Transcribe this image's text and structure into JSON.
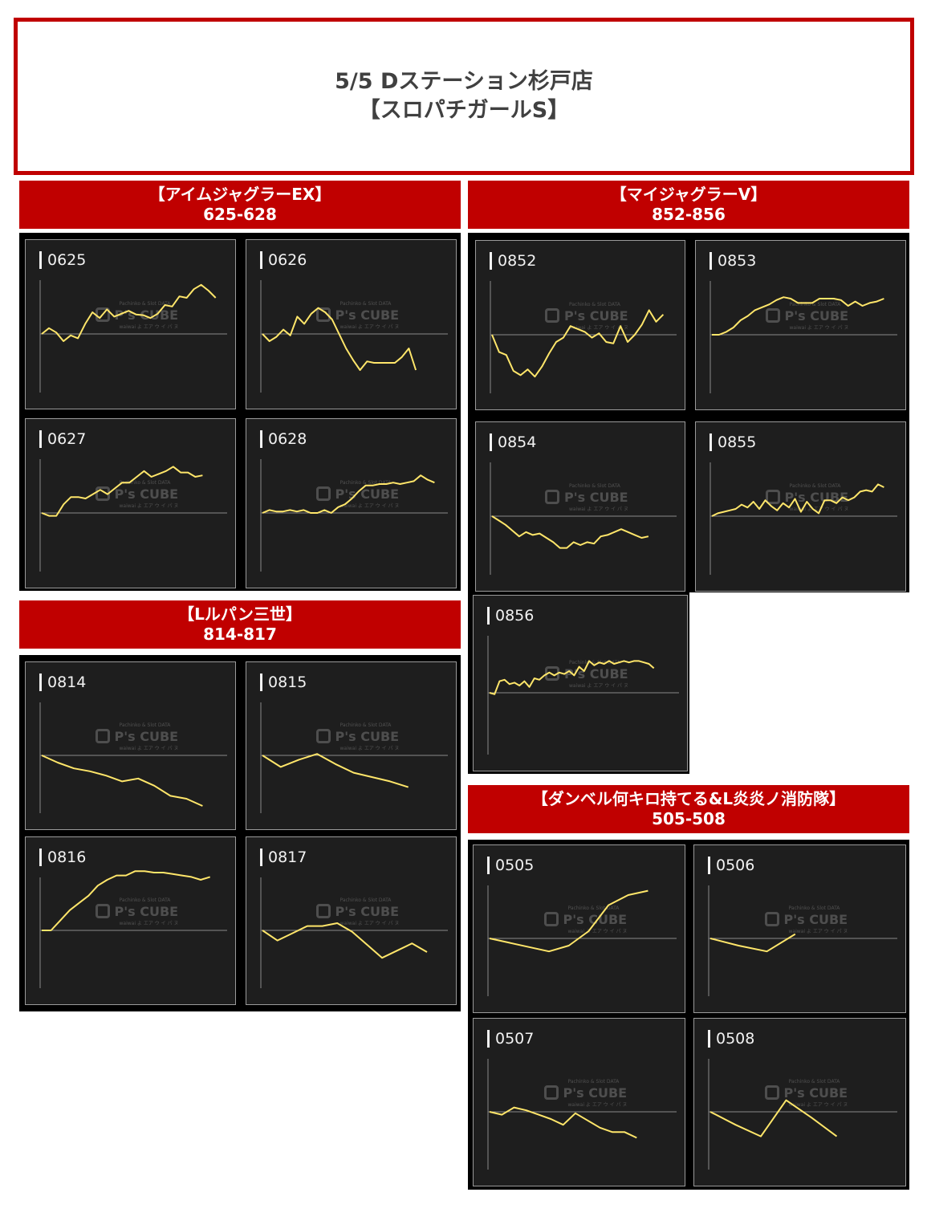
{
  "title": {
    "line1": "5/5 Dステーション杉戸店",
    "line2": "【スロパチガールS】"
  },
  "watermark": {
    "top": "Pachinko & Slot DATA",
    "brand": "P's CUBE",
    "bottom": "waiwai よ エア ウ イ パ ヌ"
  },
  "colors": {
    "accent": "#c00000",
    "line": "#ffe66a",
    "panel": "#1e1e1e",
    "baseline": "#8a8a8a"
  },
  "sections": [
    {
      "title": "【アイムジャグラーEX】",
      "range": "625-628"
    },
    {
      "title": "【マイジャグラーⅤ】",
      "range": "852-856"
    },
    {
      "title": "【Lルパン三世】",
      "range": "814-817"
    },
    {
      "title": "【ダンベル何キロ持てる&L炎炎ノ消防隊】",
      "range": "505-508"
    }
  ],
  "chart_data": [
    {
      "type": "line",
      "title": "0625",
      "x": [
        0,
        1,
        2,
        3,
        4,
        5,
        6,
        7,
        8,
        9,
        10,
        11,
        12,
        13,
        14,
        15,
        16,
        17,
        18,
        19,
        20,
        21,
        22,
        23,
        24
      ],
      "values": [
        0,
        8,
        2,
        -10,
        -2,
        -6,
        14,
        30,
        22,
        34,
        24,
        28,
        32,
        27,
        26,
        22,
        28,
        40,
        38,
        52,
        50,
        62,
        68,
        60,
        50
      ]
    },
    {
      "type": "line",
      "title": "0626",
      "x": [
        0,
        1,
        2,
        3,
        4,
        5,
        6,
        7,
        8,
        9,
        10,
        11,
        12,
        13,
        14,
        15,
        16,
        17,
        18,
        19,
        20,
        21,
        22
      ],
      "values": [
        0,
        -10,
        -4,
        6,
        -2,
        24,
        14,
        28,
        36,
        30,
        20,
        0,
        -20,
        -36,
        -50,
        -38,
        -40,
        -40,
        -40,
        -40,
        -32,
        -20,
        -50
      ]
    },
    {
      "type": "line",
      "title": "0627",
      "x": [
        0,
        1,
        2,
        3,
        4,
        5,
        6,
        7,
        8,
        9,
        10,
        11,
        12,
        13,
        14,
        15,
        16,
        17,
        18,
        19,
        20,
        21,
        22
      ],
      "values": [
        0,
        -4,
        -4,
        12,
        22,
        22,
        20,
        26,
        32,
        26,
        34,
        42,
        42,
        50,
        58,
        50,
        54,
        58,
        64,
        56,
        56,
        50,
        52
      ]
    },
    {
      "type": "line",
      "title": "0628",
      "x": [
        0,
        1,
        2,
        3,
        4,
        5,
        6,
        7,
        8,
        9,
        10,
        11,
        12,
        13,
        14,
        15,
        16,
        17,
        18,
        19,
        20,
        21,
        22,
        23,
        24,
        25
      ],
      "values": [
        0,
        4,
        2,
        2,
        4,
        2,
        4,
        0,
        0,
        4,
        0,
        8,
        12,
        20,
        30,
        38,
        38,
        40,
        40,
        42,
        40,
        42,
        44,
        52,
        46,
        42
      ]
    },
    {
      "type": "line",
      "title": "0852",
      "x": [
        0,
        1,
        2,
        3,
        4,
        5,
        6,
        7,
        8,
        9,
        10,
        11,
        12,
        13,
        14,
        15,
        16,
        17,
        18,
        19,
        20,
        21,
        22,
        23,
        24
      ],
      "values": [
        0,
        -24,
        -28,
        -50,
        -56,
        -48,
        -58,
        -44,
        -26,
        -10,
        -4,
        12,
        8,
        4,
        -4,
        2,
        -10,
        -12,
        12,
        -10,
        0,
        14,
        34,
        18,
        28
      ]
    },
    {
      "type": "line",
      "title": "0853",
      "x": [
        0,
        1,
        2,
        3,
        4,
        5,
        6,
        7,
        8,
        9,
        10,
        11,
        12,
        13,
        14,
        15,
        16,
        17,
        18,
        19,
        20,
        21,
        22,
        23,
        24
      ],
      "values": [
        0,
        0,
        4,
        10,
        20,
        26,
        34,
        38,
        42,
        48,
        52,
        50,
        44,
        44,
        44,
        50,
        50,
        50,
        48,
        40,
        46,
        40,
        44,
        46,
        50
      ]
    },
    {
      "type": "line",
      "title": "0854",
      "x": [
        0,
        1,
        2,
        3,
        4,
        5,
        6,
        7,
        8,
        9,
        10,
        11,
        12,
        13,
        14,
        15,
        16,
        17,
        18,
        19,
        20,
        21,
        22,
        23
      ],
      "values": [
        0,
        -6,
        -12,
        -20,
        -28,
        -22,
        -26,
        -24,
        -30,
        -36,
        -44,
        -44,
        -36,
        -40,
        -36,
        -38,
        -28,
        -26,
        -22,
        -18,
        -22,
        -26,
        -30,
        -28
      ]
    },
    {
      "type": "line",
      "title": "0855",
      "x": [
        0,
        1,
        2,
        3,
        4,
        5,
        6,
        7,
        8,
        9,
        10,
        11,
        12,
        13,
        14,
        15,
        16,
        17,
        18,
        19,
        20,
        21,
        22,
        23,
        24,
        25,
        26,
        27,
        28,
        29
      ],
      "values": [
        0,
        4,
        6,
        8,
        10,
        16,
        12,
        20,
        10,
        22,
        14,
        8,
        18,
        12,
        24,
        6,
        20,
        10,
        4,
        22,
        22,
        18,
        26,
        22,
        26,
        34,
        36,
        34,
        44,
        40
      ]
    },
    {
      "type": "line",
      "title": "0856",
      "x": [
        0,
        1,
        2,
        3,
        4,
        5,
        6,
        7,
        8,
        9,
        10,
        11,
        12,
        13,
        14,
        15,
        16,
        17,
        18,
        19,
        20,
        21,
        22,
        23,
        24,
        25,
        26,
        27,
        28,
        29,
        30,
        31,
        32,
        33
      ],
      "values": [
        0,
        -2,
        16,
        18,
        12,
        14,
        10,
        16,
        8,
        20,
        18,
        24,
        28,
        24,
        28,
        26,
        30,
        24,
        36,
        30,
        44,
        38,
        42,
        40,
        44,
        40,
        42,
        44,
        42,
        44,
        44,
        42,
        40,
        34
      ]
    },
    {
      "type": "line",
      "title": "0814",
      "x": [
        0,
        1,
        2,
        3,
        4,
        5,
        6,
        7,
        8,
        9,
        10
      ],
      "values": [
        0,
        -10,
        -18,
        -22,
        -28,
        -36,
        -32,
        -42,
        -56,
        -60,
        -70
      ]
    },
    {
      "type": "line",
      "title": "0815",
      "x": [
        0,
        1,
        2,
        3,
        4,
        5,
        6,
        7,
        8
      ],
      "values": [
        0,
        -16,
        -6,
        2,
        -12,
        -24,
        -30,
        -36,
        -44
      ]
    },
    {
      "type": "line",
      "title": "0816",
      "x": [
        0,
        1,
        2,
        3,
        4,
        5,
        6,
        7,
        8,
        9,
        10,
        11,
        12,
        13,
        14,
        15,
        16,
        17,
        18
      ],
      "values": [
        0,
        0,
        14,
        28,
        38,
        48,
        62,
        70,
        76,
        76,
        82,
        82,
        80,
        80,
        78,
        76,
        74,
        70,
        74
      ]
    },
    {
      "type": "line",
      "title": "0817",
      "x": [
        0,
        1,
        2,
        3,
        4,
        5,
        6,
        7,
        8,
        9,
        10,
        11
      ],
      "values": [
        0,
        -14,
        -4,
        6,
        6,
        10,
        -2,
        -20,
        -38,
        -28,
        -18,
        -30
      ]
    },
    {
      "type": "line",
      "title": "0505",
      "x": [
        0,
        1,
        2,
        3,
        4,
        5,
        6,
        7,
        8
      ],
      "values": [
        0,
        -6,
        -12,
        -18,
        -10,
        10,
        46,
        60,
        66
      ]
    },
    {
      "type": "line",
      "title": "0506",
      "x": [
        0,
        1,
        2,
        3
      ],
      "values": [
        0,
        -10,
        -18,
        6
      ]
    },
    {
      "type": "line",
      "title": "0507",
      "x": [
        0,
        1,
        2,
        3,
        4,
        5,
        6,
        7,
        8,
        9,
        10,
        11,
        12
      ],
      "values": [
        0,
        -4,
        6,
        2,
        -4,
        -10,
        -18,
        -2,
        -12,
        -22,
        -28,
        -28,
        -36
      ]
    },
    {
      "type": "line",
      "title": "0508",
      "x": [
        0,
        1,
        2,
        3,
        4,
        5
      ],
      "values": [
        0,
        -18,
        -34,
        16,
        -8,
        -34
      ]
    }
  ]
}
